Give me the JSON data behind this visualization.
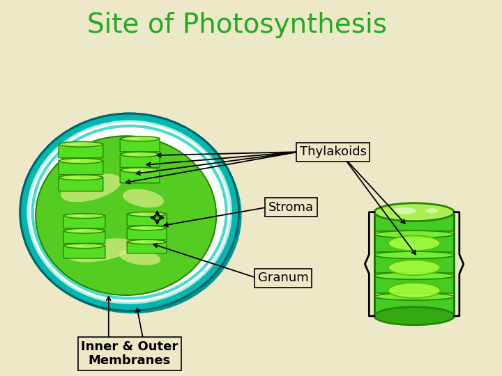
{
  "title": "Site of Photosynthesis",
  "title_color": "#22aa22",
  "title_fontsize": 28,
  "background_color": "#ede8c8",
  "label_thylakoids": "Thylakoids",
  "label_stroma": "Stroma",
  "label_granum": "Granum",
  "label_inner_outer": "Inner & Outer\nMembranes",
  "label_fontsize": 13,
  "box_facecolor": "#ede8c8",
  "box_edgecolor": "#000000",
  "arrow_color": "#000000"
}
